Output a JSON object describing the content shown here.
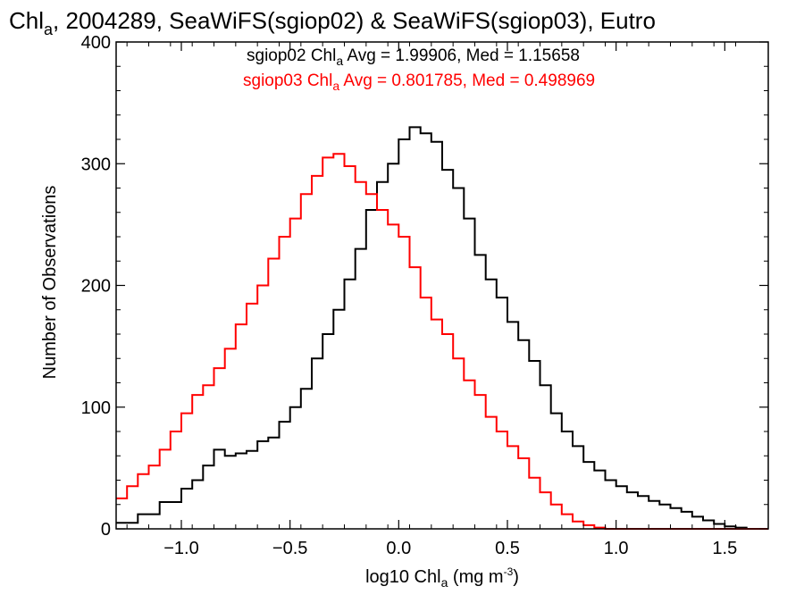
{
  "chart_data": {
    "type": "line",
    "step": true,
    "title": {
      "prefix": "Chl",
      "sub": "a",
      "rest": ", 2004289, SeaWiFS(sgiop02) & SeaWiFS(sgiop03), Eutro"
    },
    "xlabel": {
      "prefix": "log10 Chl",
      "sub": "a",
      "mid": " (mg m",
      "sup": "-3",
      "suffix": ")"
    },
    "ylabel": "Number of Observations",
    "xlim": [
      -1.3,
      1.7
    ],
    "ylim": [
      0,
      400
    ],
    "xticks": [
      {
        "value": -1.0,
        "label": "−1.0"
      },
      {
        "value": -0.5,
        "label": "−0.5"
      },
      {
        "value": 0.0,
        "label": "0.0"
      },
      {
        "value": 0.5,
        "label": "0.5"
      },
      {
        "value": 1.0,
        "label": "1.0"
      },
      {
        "value": 1.5,
        "label": "1.5"
      }
    ],
    "yticks": [
      {
        "value": 0,
        "label": "0"
      },
      {
        "value": 100,
        "label": "100"
      },
      {
        "value": 200,
        "label": "200"
      },
      {
        "value": 300,
        "label": "300"
      },
      {
        "value": 400,
        "label": "400"
      }
    ],
    "grid": false,
    "annotations": [
      {
        "prefix": "sgiop02 Chl",
        "sub": "a",
        "rest": " Avg = 1.99906, Med = 1.15658",
        "color": "#000000"
      },
      {
        "prefix": "sgiop03 Chl",
        "sub": "a",
        "rest": " Avg = 0.801785, Med = 0.498969",
        "color": "#ff0000"
      }
    ],
    "series": [
      {
        "color": "#000000",
        "points": [
          [
            -1.3,
            5
          ],
          [
            -1.2,
            12
          ],
          [
            -1.1,
            22
          ],
          [
            -1.0,
            33
          ],
          [
            -0.95,
            40
          ],
          [
            -0.9,
            52
          ],
          [
            -0.85,
            65
          ],
          [
            -0.8,
            60
          ],
          [
            -0.75,
            62
          ],
          [
            -0.7,
            64
          ],
          [
            -0.65,
            72
          ],
          [
            -0.6,
            75
          ],
          [
            -0.55,
            88
          ],
          [
            -0.5,
            100
          ],
          [
            -0.45,
            115
          ],
          [
            -0.4,
            140
          ],
          [
            -0.35,
            160
          ],
          [
            -0.3,
            180
          ],
          [
            -0.25,
            205
          ],
          [
            -0.2,
            230
          ],
          [
            -0.15,
            262
          ],
          [
            -0.1,
            285
          ],
          [
            -0.05,
            300
          ],
          [
            0.0,
            320
          ],
          [
            0.05,
            330
          ],
          [
            0.1,
            325
          ],
          [
            0.15,
            318
          ],
          [
            0.2,
            295
          ],
          [
            0.25,
            280
          ],
          [
            0.3,
            255
          ],
          [
            0.35,
            225
          ],
          [
            0.4,
            205
          ],
          [
            0.45,
            190
          ],
          [
            0.5,
            170
          ],
          [
            0.55,
            155
          ],
          [
            0.6,
            138
          ],
          [
            0.65,
            118
          ],
          [
            0.7,
            95
          ],
          [
            0.75,
            80
          ],
          [
            0.8,
            68
          ],
          [
            0.85,
            55
          ],
          [
            0.9,
            48
          ],
          [
            0.95,
            40
          ],
          [
            1.0,
            35
          ],
          [
            1.05,
            30
          ],
          [
            1.1,
            27
          ],
          [
            1.15,
            23
          ],
          [
            1.2,
            20
          ],
          [
            1.25,
            17
          ],
          [
            1.3,
            14
          ],
          [
            1.35,
            10
          ],
          [
            1.4,
            7
          ],
          [
            1.45,
            4
          ],
          [
            1.5,
            2
          ],
          [
            1.55,
            1
          ],
          [
            1.6,
            0
          ],
          [
            1.7,
            0
          ]
        ]
      },
      {
        "color": "#ff0000",
        "points": [
          [
            -1.3,
            25
          ],
          [
            -1.25,
            35
          ],
          [
            -1.2,
            45
          ],
          [
            -1.15,
            52
          ],
          [
            -1.1,
            65
          ],
          [
            -1.05,
            80
          ],
          [
            -1.0,
            95
          ],
          [
            -0.95,
            110
          ],
          [
            -0.9,
            118
          ],
          [
            -0.85,
            132
          ],
          [
            -0.8,
            148
          ],
          [
            -0.75,
            168
          ],
          [
            -0.7,
            185
          ],
          [
            -0.65,
            200
          ],
          [
            -0.6,
            222
          ],
          [
            -0.55,
            240
          ],
          [
            -0.5,
            255
          ],
          [
            -0.45,
            275
          ],
          [
            -0.4,
            290
          ],
          [
            -0.35,
            305
          ],
          [
            -0.3,
            308
          ],
          [
            -0.25,
            298
          ],
          [
            -0.2,
            285
          ],
          [
            -0.15,
            275
          ],
          [
            -0.1,
            262
          ],
          [
            -0.05,
            250
          ],
          [
            0.0,
            240
          ],
          [
            0.05,
            215
          ],
          [
            0.1,
            190
          ],
          [
            0.15,
            172
          ],
          [
            0.2,
            160
          ],
          [
            0.25,
            140
          ],
          [
            0.3,
            122
          ],
          [
            0.35,
            110
          ],
          [
            0.4,
            92
          ],
          [
            0.45,
            80
          ],
          [
            0.5,
            68
          ],
          [
            0.55,
            58
          ],
          [
            0.6,
            42
          ],
          [
            0.65,
            30
          ],
          [
            0.7,
            20
          ],
          [
            0.75,
            12
          ],
          [
            0.8,
            6
          ],
          [
            0.85,
            3
          ],
          [
            0.9,
            1
          ],
          [
            0.95,
            0
          ],
          [
            1.7,
            0
          ]
        ]
      }
    ]
  }
}
